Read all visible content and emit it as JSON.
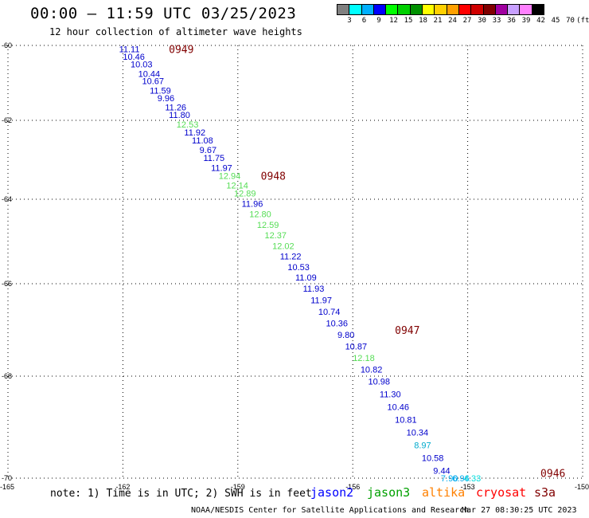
{
  "title": "00:00 – 11:59 UTC 03/25/2023",
  "subtitle": "12 hour collection of altimeter wave heights",
  "legend": {
    "colors": [
      "#808080",
      "#00ffff",
      "#00b0ff",
      "#0000ff",
      "#00ff00",
      "#00d000",
      "#009000",
      "#ffff00",
      "#ffd000",
      "#ffa000",
      "#ff0000",
      "#d00000",
      "#800000",
      "#a000a0",
      "#c8a0ff",
      "#ff80ff",
      "#000000"
    ],
    "labels": [
      "3",
      "6",
      "9",
      "12",
      "15",
      "18",
      "21",
      "24",
      "27",
      "30",
      "33",
      "36",
      "39",
      "42",
      "45",
      "70",
      "(ft)"
    ]
  },
  "note": "note: 1) Time is in UTC; 2) SWH is in feet",
  "satellites": [
    {
      "name": "jason2",
      "color": "#0000ff"
    },
    {
      "name": "jason3",
      "color": "#00a000"
    },
    {
      "name": "altika",
      "color": "#ff8000"
    },
    {
      "name": "cryosat",
      "color": "#ff0000"
    },
    {
      "name": "s3a",
      "color": "#800000"
    }
  ],
  "footer_left": "NOAA/NESDIS Center for Satellite Applications and Research",
  "footer_right": "Mar 27 08:30:25 UTC 2023",
  "chart_data": {
    "type": "scatter",
    "lon_ticks": [
      "-165",
      "-162",
      "-159",
      "-156",
      "-153",
      "-150"
    ],
    "lat_ticks": [
      "-60",
      "-62",
      "-64",
      "-66",
      "-68",
      "-70"
    ],
    "lon_range": [
      -165,
      -150
    ],
    "lat_range": [
      -70,
      -60
    ],
    "grid": true,
    "time_labels": [
      {
        "text": "0949",
        "lon": -160.8,
        "lat": -60.1
      },
      {
        "text": "0948",
        "lon": -158.4,
        "lat": -63.4
      },
      {
        "text": "0947",
        "lon": -154.9,
        "lat": -67.0
      },
      {
        "text": "0946",
        "lon": -151.1,
        "lat": -69.9
      }
    ],
    "points": [
      {
        "v": "11.11",
        "c": "#0000cc",
        "lon": -162.1,
        "lat": -60.1
      },
      {
        "v": "10.46",
        "c": "#0000cc",
        "lon": -162.0,
        "lat": -60.3
      },
      {
        "v": "10.03",
        "c": "#0000cc",
        "lon": -161.8,
        "lat": -60.5
      },
      {
        "v": "10.44",
        "c": "#0000cc",
        "lon": -161.6,
        "lat": -60.75
      },
      {
        "v": "10.67",
        "c": "#0000cc",
        "lon": -161.5,
        "lat": -60.95
      },
      {
        "v": "11.59",
        "c": "#0000cc",
        "lon": -161.3,
        "lat": -61.2
      },
      {
        "v": "9.96",
        "c": "#0000cc",
        "lon": -161.1,
        "lat": -61.4
      },
      {
        "v": "11.26",
        "c": "#0000cc",
        "lon": -160.9,
        "lat": -61.65
      },
      {
        "v": "11.80",
        "c": "#0000cc",
        "lon": -160.8,
        "lat": -61.85
      },
      {
        "v": "12.53",
        "c": "#55dd55",
        "lon": -160.6,
        "lat": -62.1
      },
      {
        "v": "11.92",
        "c": "#0000cc",
        "lon": -160.4,
        "lat": -62.3
      },
      {
        "v": "11.08",
        "c": "#0000cc",
        "lon": -160.2,
        "lat": -62.5
      },
      {
        "v": "9.67",
        "c": "#0000cc",
        "lon": -160.0,
        "lat": -62.75
      },
      {
        "v": "11.75",
        "c": "#0000cc",
        "lon": -159.9,
        "lat": -62.95
      },
      {
        "v": "11.97",
        "c": "#0000cc",
        "lon": -159.7,
        "lat": -63.2
      },
      {
        "v": "12.94",
        "c": "#55dd55",
        "lon": -159.5,
        "lat": -63.4
      },
      {
        "v": "12.14",
        "c": "#55dd55",
        "lon": -159.3,
        "lat": -63.65
      },
      {
        "v": "12.89",
        "c": "#55dd55",
        "lon": -159.1,
        "lat": -63.85
      },
      {
        "v": "11.96",
        "c": "#0000cc",
        "lon": -158.9,
        "lat": -64.1
      },
      {
        "v": "12.80",
        "c": "#55dd55",
        "lon": -158.7,
        "lat": -64.35
      },
      {
        "v": "12.59",
        "c": "#55dd55",
        "lon": -158.5,
        "lat": -64.6
      },
      {
        "v": "12.37",
        "c": "#55dd55",
        "lon": -158.3,
        "lat": -64.85
      },
      {
        "v": "12.02",
        "c": "#55dd55",
        "lon": -158.1,
        "lat": -65.1
      },
      {
        "v": "11.22",
        "c": "#0000cc",
        "lon": -157.9,
        "lat": -65.35
      },
      {
        "v": "10.53",
        "c": "#0000cc",
        "lon": -157.7,
        "lat": -65.6
      },
      {
        "v": "11.09",
        "c": "#0000cc",
        "lon": -157.5,
        "lat": -65.85
      },
      {
        "v": "11.93",
        "c": "#0000cc",
        "lon": -157.3,
        "lat": -66.1
      },
      {
        "v": "11.97",
        "c": "#0000cc",
        "lon": -157.1,
        "lat": -66.35
      },
      {
        "v": "10.74",
        "c": "#0000cc",
        "lon": -156.9,
        "lat": -66.6
      },
      {
        "v": "10.36",
        "c": "#0000cc",
        "lon": -156.7,
        "lat": -66.85
      },
      {
        "v": "9.80",
        "c": "#0000cc",
        "lon": -156.4,
        "lat": -67.1
      },
      {
        "v": "10.87",
        "c": "#0000cc",
        "lon": -156.2,
        "lat": -67.35
      },
      {
        "v": "12.18",
        "c": "#55dd55",
        "lon": -156.0,
        "lat": -67.6
      },
      {
        "v": "10.82",
        "c": "#0000cc",
        "lon": -155.8,
        "lat": -67.85
      },
      {
        "v": "10.98",
        "c": "#0000cc",
        "lon": -155.6,
        "lat": -68.1
      },
      {
        "v": "11.30",
        "c": "#0000cc",
        "lon": -155.3,
        "lat": -68.35
      },
      {
        "v": "10.46",
        "c": "#0000cc",
        "lon": -155.1,
        "lat": -68.6
      },
      {
        "v": "10.81",
        "c": "#0000cc",
        "lon": -154.9,
        "lat": -68.85
      },
      {
        "v": "10.34",
        "c": "#0000cc",
        "lon": -154.6,
        "lat": -69.1
      },
      {
        "v": "8.97",
        "c": "#00aacc",
        "lon": -154.4,
        "lat": -69.35
      },
      {
        "v": "10.58",
        "c": "#0000cc",
        "lon": -154.2,
        "lat": -69.6
      },
      {
        "v": "9.44",
        "c": "#0000cc",
        "lon": -153.9,
        "lat": -69.85
      },
      {
        "v": "7.90",
        "c": "#00aaee",
        "lon": -153.7,
        "lat": -70.1
      },
      {
        "v": "6.96",
        "c": "#00aaee",
        "lon": -153.4,
        "lat": -70.35
      },
      {
        "v": "4.33",
        "c": "#00dddd",
        "lon": -153.1,
        "lat": -70.95
      }
    ]
  }
}
